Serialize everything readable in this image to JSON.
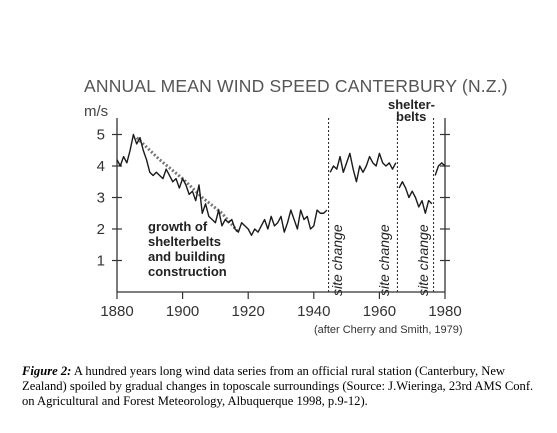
{
  "chart_data": {
    "type": "line",
    "title": "ANNUAL MEAN WIND SPEED CANTERBURY (N.Z.)",
    "ylabel": "m/s",
    "xlabel": "",
    "xlim": [
      1880,
      1980
    ],
    "ylim": [
      0,
      5.5
    ],
    "x_ticks": [
      1880,
      1900,
      1920,
      1940,
      1960,
      1980
    ],
    "y_ticks": [
      1,
      2,
      3,
      4,
      5
    ],
    "grid": false,
    "series": [
      {
        "x": [
          1880,
          1881,
          1882,
          1883,
          1884,
          1885,
          1886,
          1887,
          1888,
          1889,
          1890,
          1891,
          1892,
          1893,
          1894,
          1895,
          1896,
          1897,
          1898,
          1899,
          1900,
          1901,
          1902,
          1903,
          1904,
          1905,
          1906,
          1907,
          1908,
          1909,
          1910,
          1911,
          1912,
          1913,
          1914,
          1915,
          1916,
          1917,
          1918,
          1919,
          1920,
          1921,
          1922,
          1923,
          1924,
          1925,
          1926,
          1927,
          1928,
          1929,
          1930,
          1931,
          1932,
          1933,
          1934,
          1935,
          1936,
          1937,
          1938,
          1939,
          1940,
          1941,
          1942,
          1943,
          1944
        ],
        "values": [
          4.2,
          4.0,
          4.3,
          4.1,
          4.5,
          5.0,
          4.7,
          4.9,
          4.5,
          4.2,
          3.8,
          3.7,
          3.8,
          3.7,
          3.6,
          3.9,
          3.7,
          3.5,
          3.6,
          3.3,
          3.6,
          3.4,
          3.1,
          3.2,
          2.9,
          3.4,
          2.5,
          2.8,
          2.4,
          2.3,
          2.2,
          2.6,
          2.1,
          2.3,
          2.2,
          2.3,
          2.0,
          1.9,
          2.2,
          2.1,
          2.0,
          1.8,
          2.0,
          1.9,
          2.1,
          2.3,
          2.0,
          2.4,
          2.1,
          2.2,
          2.4,
          1.9,
          2.2,
          2.6,
          2.3,
          2.0,
          2.6,
          2.3,
          2.4,
          2.0,
          2.1,
          2.6,
          2.5,
          2.5,
          2.6
        ]
      },
      {
        "x": [
          1945,
          1946,
          1947,
          1948,
          1949,
          1950,
          1951,
          1952,
          1953,
          1954,
          1955,
          1956,
          1957,
          1958,
          1959,
          1960,
          1961,
          1962,
          1963,
          1964,
          1965
        ],
        "values": [
          3.8,
          4.0,
          3.9,
          4.3,
          3.8,
          4.1,
          4.4,
          3.9,
          3.5,
          4.0,
          3.8,
          4.0,
          4.3,
          4.1,
          4.0,
          4.4,
          4.1,
          4.0,
          4.1,
          3.9,
          4.1
        ]
      },
      {
        "x": [
          1966,
          1967,
          1968,
          1969,
          1970,
          1971,
          1972,
          1973,
          1974,
          1975,
          1976
        ],
        "values": [
          3.3,
          3.5,
          3.3,
          3.0,
          3.2,
          3.0,
          2.7,
          2.9,
          2.5,
          2.9,
          2.8
        ]
      },
      {
        "x": [
          1977,
          1978,
          1979,
          1980
        ],
        "values": [
          3.7,
          4.0,
          4.1,
          4.0
        ]
      }
    ],
    "trend_line": {
      "x": [
        1886,
        1893,
        1900,
        1906,
        1912,
        1917
      ],
      "values": [
        4.9,
        4.2,
        3.6,
        3.0,
        2.5,
        1.9
      ]
    },
    "site_changes": [
      1944.5,
      1965.5,
      1976.5
    ],
    "annotations": {
      "growth_lines": [
        "growth of",
        "shelterbelts",
        "and building",
        "construction"
      ],
      "shelterbelts_lines": [
        "shelter-",
        "belts"
      ],
      "site_change": "site change",
      "source": "(after Cherry and Smith, 1979)"
    }
  },
  "caption": {
    "label": "Figure 2:",
    "text": "A hundred years long wind data series from an official rural station (Canterbury, New Zealand) spoiled by gradual changes in toposcale surroundings (Source: J.Wieringa, 23rd AMS Conf. on Agricultural and Forest Meteorology, Albuquerque 1998, p.9-12)."
  }
}
